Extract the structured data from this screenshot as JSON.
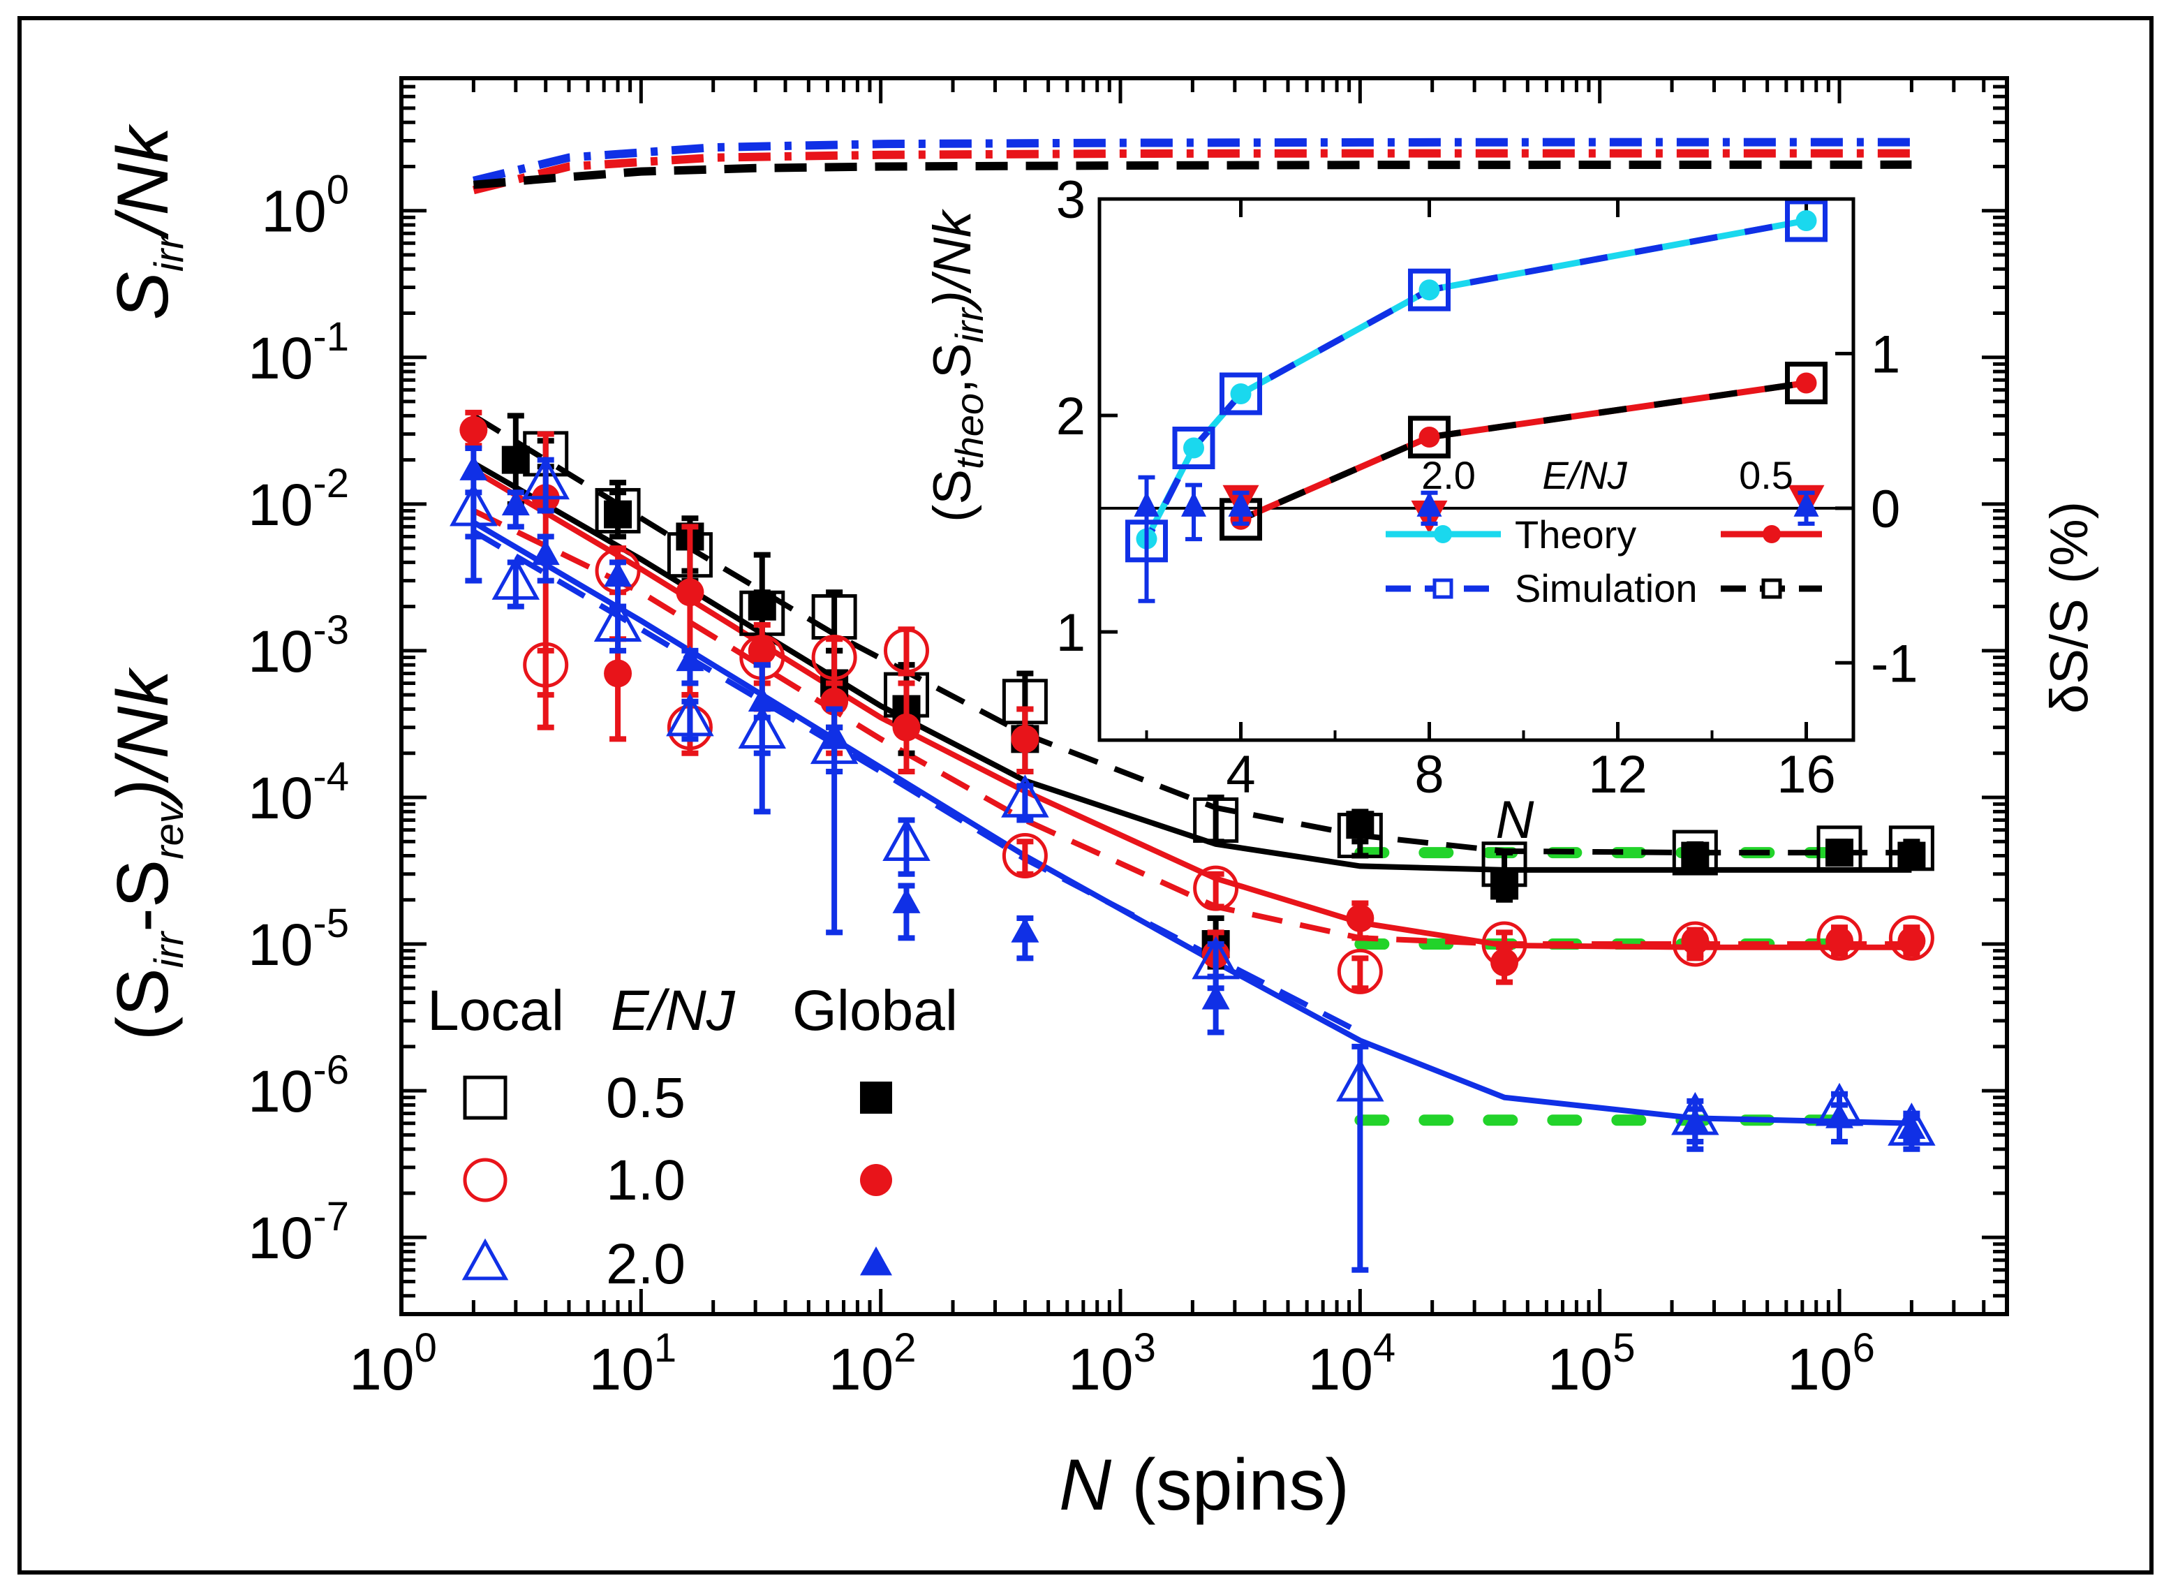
{
  "chart_data": {
    "type": "line",
    "title": "",
    "xlabel": {
      "italic": "N",
      "rest": " (spins)"
    },
    "ylabel_top": {
      "S": "S",
      "sub": "irr",
      "tail": "/Nk"
    },
    "ylabel_bottom": {
      "open": "(S",
      "sub1": "irr",
      "mid": "-S",
      "sub2": "rev",
      "tail": ")/Nk"
    },
    "x_scale": "log",
    "xlim": [
      1,
      5000000
    ],
    "ylim": [
      3e-08,
      8
    ],
    "colors": {
      "e05": "#000000",
      "e10": "#e8141a",
      "e20": "#1030e6",
      "asymptote": "#22d32a",
      "theory_cyan": "#1ad8ee"
    },
    "x_ticks": [
      {
        "value": 1,
        "base": "10",
        "exp": "0"
      },
      {
        "value": 10,
        "base": "10",
        "exp": "1"
      },
      {
        "value": 100,
        "base": "10",
        "exp": "2"
      },
      {
        "value": 1000,
        "base": "10",
        "exp": "3"
      },
      {
        "value": 10000,
        "base": "10",
        "exp": "4"
      },
      {
        "value": 100000,
        "base": "10",
        "exp": "5"
      },
      {
        "value": 1000000,
        "base": "10",
        "exp": "6"
      }
    ],
    "y_ticks": [
      {
        "value": 1,
        "base": "10",
        "exp": "0"
      },
      {
        "value": 0.1,
        "base": "10",
        "exp": "-1"
      },
      {
        "value": 0.01,
        "base": "10",
        "exp": "-2"
      },
      {
        "value": 0.001,
        "base": "10",
        "exp": "-3"
      },
      {
        "value": 0.0001,
        "base": "10",
        "exp": "-4"
      },
      {
        "value": 1e-05,
        "base": "10",
        "exp": "-5"
      },
      {
        "value": 1e-06,
        "base": "10",
        "exp": "-6"
      },
      {
        "value": 1e-07,
        "base": "10",
        "exp": "-7"
      }
    ],
    "top_curves": [
      {
        "name": "2.0",
        "color": "e20",
        "x": [
          2,
          5,
          20,
          100,
          1000,
          10000,
          100000,
          2000000
        ],
        "y": [
          1.6,
          2.3,
          2.7,
          2.85,
          2.9,
          2.92,
          2.93,
          2.93
        ]
      },
      {
        "name": "1.0",
        "color": "e10",
        "x": [
          2,
          5,
          20,
          100,
          1000,
          10000,
          100000,
          2000000
        ],
        "y": [
          1.38,
          2.0,
          2.3,
          2.4,
          2.45,
          2.46,
          2.46,
          2.46
        ]
      },
      {
        "name": "0.5",
        "color": "e05",
        "x": [
          2,
          4,
          10,
          30,
          100,
          1000,
          10000,
          2000000
        ],
        "y": [
          1.5,
          1.65,
          1.85,
          1.95,
          2.0,
          2.03,
          2.05,
          2.06
        ]
      }
    ],
    "series": [
      {
        "name": "0.5 Local",
        "type": "local",
        "color": "e05",
        "marker": "square",
        "filled": false,
        "x": [
          4,
          8,
          16,
          32,
          64,
          128,
          400,
          2500,
          10000,
          40000,
          250000,
          1000000,
          2000000
        ],
        "y": [
          0.022,
          0.009,
          0.0045,
          0.0018,
          0.0017,
          0.0005,
          0.00045,
          7e-05,
          5.5e-05,
          3.5e-05,
          4.2e-05,
          4.5e-05,
          4.5e-05
        ],
        "err": [
          [
            0.018,
            0.027
          ],
          [
            0.0075,
            0.014
          ],
          [
            0.0035,
            0.006
          ],
          [
            0.001,
            0.0025
          ],
          [
            0.001,
            0.0025
          ],
          [
            0.0003,
            0.0008
          ],
          [
            0.0003,
            0.0007
          ],
          [
            5e-05,
            0.0001
          ],
          [
            4e-05,
            7e-05
          ],
          [
            2.8e-05,
            4.2e-05
          ],
          [
            3.6e-05,
            4.8e-05
          ],
          [
            4e-05,
            5e-05
          ],
          [
            4e-05,
            5e-05
          ]
        ]
      },
      {
        "name": "0.5 Global",
        "type": "global",
        "color": "e05",
        "marker": "square",
        "filled": true,
        "x": [
          3,
          8,
          16,
          32,
          64,
          128,
          400,
          2500,
          10000,
          40000,
          250000,
          1000000,
          2000000
        ],
        "y": [
          0.02,
          0.0085,
          0.006,
          0.002,
          0.0006,
          0.0004,
          0.00025,
          1e-05,
          6.5e-05,
          2.5e-05,
          4e-05,
          4.2e-05,
          4e-05
        ],
        "err": [
          [
            0.01,
            0.04
          ],
          [
            0.006,
            0.012
          ],
          [
            0.003,
            0.008
          ],
          [
            0.0008,
            0.0045
          ],
          [
            0.0003,
            0.001
          ],
          [
            0.0002,
            0.0008
          ],
          [
            0.00015,
            0.0004
          ],
          [
            7e-06,
            1.5e-05
          ],
          [
            5e-05,
            8e-05
          ],
          [
            2e-05,
            3e-05
          ],
          [
            3.4e-05,
            4.6e-05
          ],
          [
            3.8e-05,
            4.6e-05
          ],
          [
            3.6e-05,
            4.4e-05
          ]
        ]
      },
      {
        "name": "1.0 Local",
        "type": "local",
        "color": "e10",
        "marker": "circle",
        "filled": false,
        "x": [
          4,
          8,
          16,
          32,
          64,
          128,
          400,
          2500,
          10000,
          40000,
          250000,
          1000000,
          2000000
        ],
        "y": [
          0.0008,
          0.0035,
          0.0003,
          0.0009,
          0.0009,
          0.001,
          4e-05,
          2.4e-05,
          6.5e-06,
          1e-05,
          1e-05,
          1.1e-05,
          1.1e-05
        ],
        "err": [
          [
            0.0005,
            0.001
          ],
          [
            0.0025,
            0.005
          ],
          [
            0.0002,
            0.0005
          ],
          [
            0.0006,
            0.0012
          ],
          [
            0.0006,
            0.0012
          ],
          [
            0.0007,
            0.0014
          ],
          [
            3e-05,
            5e-05
          ],
          [
            1.8e-05,
            3e-05
          ],
          [
            5e-06,
            8e-06
          ],
          [
            8e-06,
            1.2e-05
          ],
          [
            8e-06,
            1.2e-05
          ],
          [
            9e-06,
            1.3e-05
          ],
          [
            9e-06,
            1.3e-05
          ]
        ]
      },
      {
        "name": "1.0 Global",
        "type": "global",
        "color": "e10",
        "marker": "circle",
        "filled": true,
        "x": [
          2,
          4,
          8,
          16,
          32,
          64,
          128,
          400,
          2500,
          10000,
          40000,
          250000,
          1000000,
          2000000
        ],
        "y": [
          0.032,
          0.011,
          0.0007,
          0.0025,
          0.001,
          0.00045,
          0.0003,
          0.00025,
          8.5e-06,
          1.5e-05,
          7.5e-06,
          1.05e-05,
          1.05e-05,
          1.05e-05
        ],
        "err": [
          [
            0.025,
            0.042
          ],
          [
            0.0003,
            0.03
          ],
          [
            0.00025,
            0.0012
          ],
          [
            0.0005,
            0.007
          ],
          [
            0.0004,
            0.0015
          ],
          [
            0.0002,
            0.0006
          ],
          [
            0.00015,
            0.0006
          ],
          [
            0.00015,
            0.0004
          ],
          [
            6e-06,
            1.2e-05
          ],
          [
            1.1e-05,
            1.9e-05
          ],
          [
            5.5e-06,
            9.5e-06
          ],
          [
            8.5e-06,
            1.25e-05
          ],
          [
            8.5e-06,
            1.25e-05
          ],
          [
            8.5e-06,
            1.25e-05
          ]
        ]
      },
      {
        "name": "2.0 Local",
        "type": "local",
        "color": "e20",
        "marker": "triangle",
        "filled": false,
        "x": [
          2,
          3,
          4,
          8,
          16,
          32,
          64,
          128,
          400,
          2500,
          10000,
          250000,
          1000000,
          2000000
        ],
        "y": [
          0.0092,
          0.0029,
          0.014,
          0.0015,
          0.00034,
          0.00028,
          0.00022,
          4.8e-05,
          9.5e-05,
          7.5e-06,
          1.1e-06,
          6.5e-07,
          7.5e-07,
          5.5e-07
        ],
        "err": [
          [
            0.006,
            0.012
          ],
          [
            0.002,
            0.004
          ],
          [
            0.009,
            0.02
          ],
          [
            0.001,
            0.002
          ],
          [
            0.00025,
            0.00045
          ],
          [
            0.0002,
            0.00035
          ],
          [
            0.00015,
            0.0003
          ],
          [
            3e-05,
            7e-05
          ],
          [
            7e-05,
            0.00012
          ],
          [
            5e-06,
            1e-05
          ],
          [
            6e-08,
            2e-06
          ],
          [
            4.5e-07,
            8.5e-07
          ],
          [
            6e-07,
            9.5e-07
          ],
          [
            4.5e-07,
            6.5e-07
          ]
        ]
      },
      {
        "name": "2.0 Global",
        "type": "global",
        "color": "e20",
        "marker": "triangle",
        "filled": true,
        "x": [
          2,
          3,
          4,
          8,
          16,
          32,
          64,
          128,
          400,
          2500,
          250000,
          1000000,
          2000000
        ],
        "y": [
          0.017,
          0.0098,
          0.0045,
          0.0032,
          0.00085,
          0.00045,
          0.00025,
          1.9e-05,
          1.2e-05,
          4.2e-06,
          6e-07,
          6.5e-07,
          5.5e-07
        ],
        "err": [
          [
            0.003,
            0.024
          ],
          [
            0.007,
            0.012
          ],
          [
            0.003,
            0.006
          ],
          [
            0.002,
            0.004
          ],
          [
            0.0006,
            0.001
          ],
          [
            8e-05,
            0.0008
          ],
          [
            1.2e-05,
            0.0004
          ],
          [
            1.1e-05,
            2.5e-05
          ],
          [
            8e-06,
            1.5e-05
          ],
          [
            2.5e-06,
            6e-06
          ],
          [
            4e-07,
            7.5e-07
          ],
          [
            4.5e-07,
            8e-07
          ],
          [
            4e-07,
            7e-07
          ]
        ]
      }
    ],
    "fit_solid": [
      {
        "name": "0.5",
        "color": "e05",
        "x": [
          2,
          10,
          100,
          400,
          2500,
          10000,
          40000,
          250000,
          2000000
        ],
        "y": [
          0.019,
          0.0042,
          0.00042,
          0.00013,
          4.8e-05,
          3.4e-05,
          3.2e-05,
          3.2e-05,
          3.2e-05
        ]
      },
      {
        "name": "1.0",
        "color": "e10",
        "x": [
          2,
          10,
          100,
          400,
          2500,
          10000,
          40000,
          250000,
          2000000
        ],
        "y": [
          0.017,
          0.0036,
          0.00035,
          0.00011,
          2.8e-05,
          1.4e-05,
          9.8e-06,
          9.5e-06,
          9.5e-06
        ]
      },
      {
        "name": "2.0",
        "color": "e20",
        "x": [
          2,
          10,
          100,
          400,
          2500,
          10000,
          40000,
          250000,
          2000000
        ],
        "y": [
          0.0075,
          0.0016,
          0.00016,
          4e-05,
          7.5e-06,
          2.2e-06,
          9e-07,
          6.5e-07,
          6e-07
        ]
      }
    ],
    "fit_dashed": [
      {
        "name": "0.5",
        "color": "e05",
        "x": [
          2,
          8,
          16,
          64,
          400,
          2500,
          10000,
          40000,
          250000,
          2000000
        ],
        "y": [
          0.04,
          0.01,
          0.005,
          0.0013,
          0.00027,
          8.5e-05,
          5.5e-05,
          4.3e-05,
          4.2e-05,
          4.2e-05
        ]
      },
      {
        "name": "1.0",
        "color": "e10",
        "x": [
          2,
          10,
          100,
          400,
          2500,
          10000,
          40000,
          250000,
          2000000
        ],
        "y": [
          0.009,
          0.0025,
          0.00025,
          7e-05,
          1.8e-05,
          1.1e-05,
          1e-05,
          1e-05,
          1e-05
        ]
      },
      {
        "name": "2.0",
        "color": "e20",
        "x": [
          2,
          10,
          100,
          400,
          2500,
          10000
        ],
        "y": [
          0.0065,
          0.0014,
          0.00015,
          3.8e-05,
          8e-06,
          2.5e-06
        ]
      }
    ],
    "asymptotes": [
      {
        "x": [
          10000,
          1000000
        ],
        "y": 4.2e-05
      },
      {
        "x": [
          10000,
          1000000
        ],
        "y": 1e-05
      },
      {
        "x": [
          10000,
          1000000
        ],
        "y": 6.3e-07
      }
    ],
    "legend": {
      "title_left": "Local",
      "title_mid_italic": "E/NJ",
      "title_right": "Global",
      "rows": [
        {
          "label": "0.5",
          "color": "e05",
          "marker": "square"
        },
        {
          "label": "1.0",
          "color": "e10",
          "marker": "circle"
        },
        {
          "label": "2.0",
          "color": "e20",
          "marker": "triangle"
        }
      ]
    },
    "inset": {
      "xlabel": "N",
      "ylabel": {
        "open": "(S",
        "sub1": "theo",
        "mid": ",S",
        "sub2": "irr",
        "tail": ")/Nk"
      },
      "ylabel_right": "δS/S (%)",
      "xlim": [
        1,
        17
      ],
      "ylim": [
        0.5,
        3
      ],
      "y2lim": [
        -1.5,
        2
      ],
      "x_ticks": [
        "4",
        "8",
        "12",
        "16"
      ],
      "y_ticks": [
        "1",
        "2",
        "3"
      ],
      "y2_ticks": [
        "-1",
        "0",
        "1"
      ],
      "theory_20": {
        "x": [
          2,
          3,
          4,
          8,
          16
        ],
        "y": [
          1.43,
          1.85,
          2.1,
          2.58,
          2.9
        ]
      },
      "sim_20": {
        "x": [
          2,
          3,
          4,
          8,
          16
        ],
        "y": [
          1.42,
          1.85,
          2.1,
          2.58,
          2.9
        ]
      },
      "theory_05": {
        "x": [
          4,
          8,
          16
        ],
        "y": [
          1.52,
          1.9,
          2.15
        ]
      },
      "sim_05": {
        "x": [
          4,
          8,
          16
        ],
        "y": [
          1.52,
          1.9,
          2.15
        ]
      },
      "delta_blue": {
        "x": [
          2,
          3,
          4,
          8,
          16
        ],
        "y": [
          0.0,
          0.0,
          0.0,
          0.0,
          0.0
        ],
        "err": [
          [
            -0.6,
            0.2
          ],
          [
            -0.2,
            0.15
          ],
          [
            -0.1,
            0.1
          ],
          [
            -0.1,
            0.1
          ],
          [
            -0.1,
            0.1
          ]
        ]
      },
      "delta_red": {
        "x": [
          4,
          8,
          16
        ],
        "y": [
          0.05,
          -0.05,
          0.05
        ]
      },
      "zero_line": 0,
      "legend": {
        "col_left": "2.0",
        "col_mid": "E/NJ",
        "col_right": "0.5",
        "row1": "Theory",
        "row2": "Simulation"
      }
    }
  }
}
